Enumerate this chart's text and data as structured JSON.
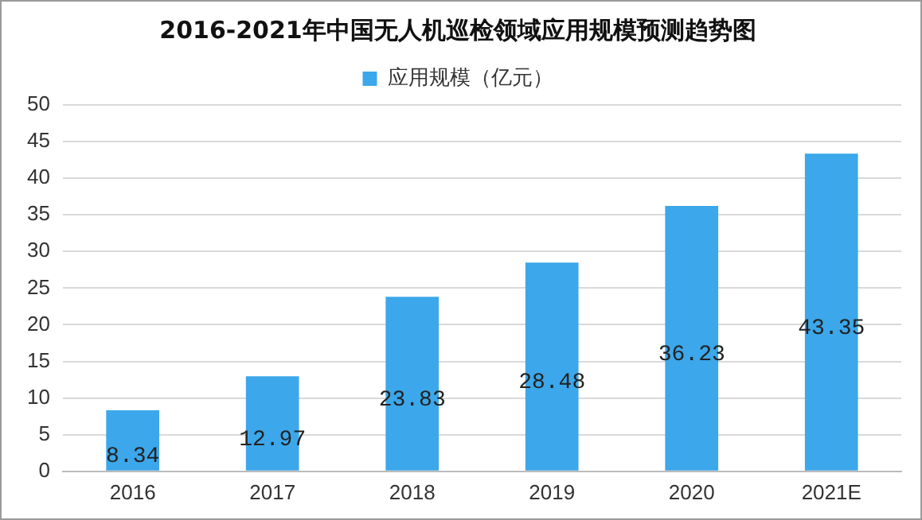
{
  "chart_data": {
    "type": "bar",
    "title": "2016-2021年中国无人机巡检领域应用规模预测趋势图",
    "categories": [
      "2016",
      "2017",
      "2018",
      "2019",
      "2020",
      "2021E"
    ],
    "series": [
      {
        "name": "应用规模（亿元）",
        "color": "#3ca7ea",
        "values": [
          8.34,
          12.97,
          23.83,
          28.48,
          36.23,
          43.35
        ]
      }
    ],
    "ylim": [
      0,
      50
    ],
    "yticks": [
      0,
      5,
      10,
      15,
      20,
      25,
      30,
      35,
      40,
      45,
      50
    ],
    "grid": "y",
    "legend": "top",
    "data_labels": true
  }
}
